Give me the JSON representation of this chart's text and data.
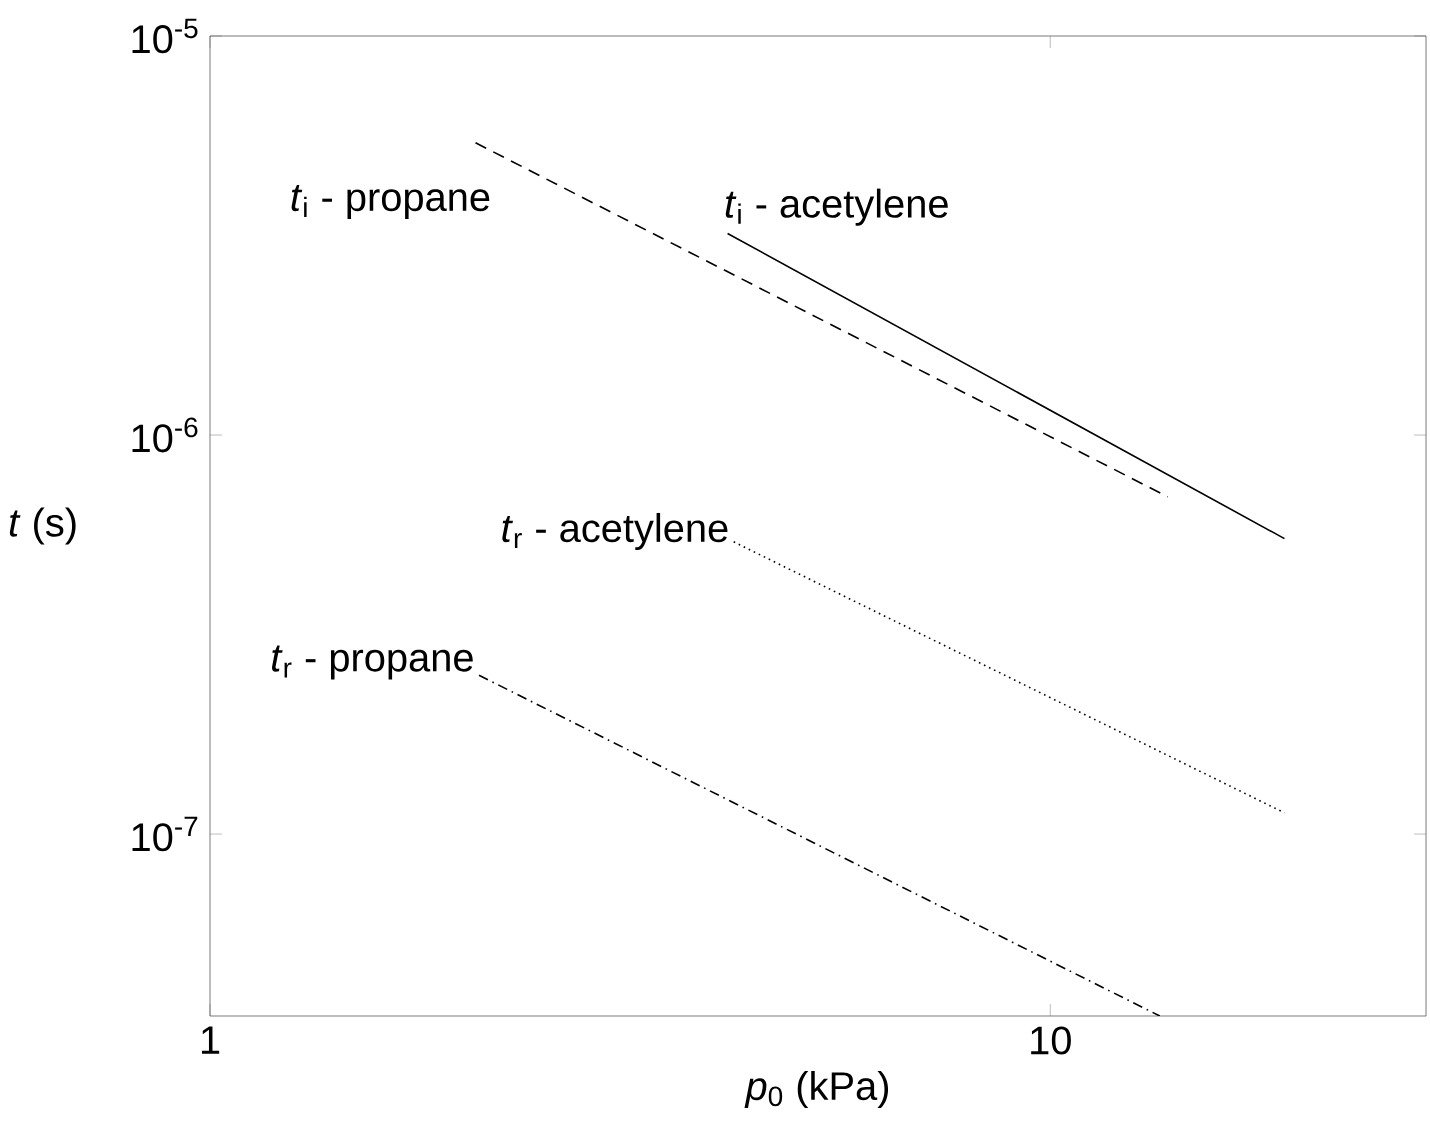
{
  "chart_data": {
    "type": "line",
    "xlabel": "*p*$_{0}$ (kPa)",
    "ylabel": "*t* (s)",
    "log": "xy",
    "xlim": [
      1,
      28
    ],
    "ylim": [
      3.5e-08,
      1e-05
    ],
    "xticks": [
      1,
      10
    ],
    "yticks": [
      {
        "value": 1e-07,
        "label": "10$^{-7}$"
      },
      {
        "value": 1e-06,
        "label": "10$^{-6}$"
      },
      {
        "value": 1e-05,
        "label": "10$^{-5}$"
      }
    ],
    "grid": false,
    "legend": false,
    "marker": "none",
    "series": [
      {
        "name": "*t*$_{i}$ - propane",
        "color": "#000000",
        "line_style": "dashed",
        "x": [
          2.07,
          13.8
        ],
        "values": [
          5.4e-06,
          7e-07
        ]
      },
      {
        "name": "*t*$_{i}$ - acetylene",
        "color": "#000000",
        "line_style": "solid",
        "x": [
          4.13,
          19.0
        ],
        "values": [
          3.2e-06,
          5.5e-07
        ]
      },
      {
        "name": "*t*$_{r}$ - acetylene",
        "color": "#000000",
        "line_style": "dotted",
        "x": [
          4.2,
          19.0
        ],
        "values": [
          5.4e-07,
          1.13e-07
        ]
      },
      {
        "name": "*t*$_{r}$ - propane",
        "color": "#000000",
        "line_style": "dashdot",
        "x": [
          2.09,
          13.5
        ],
        "values": [
          2.5e-07,
          3.5e-08
        ]
      }
    ]
  }
}
